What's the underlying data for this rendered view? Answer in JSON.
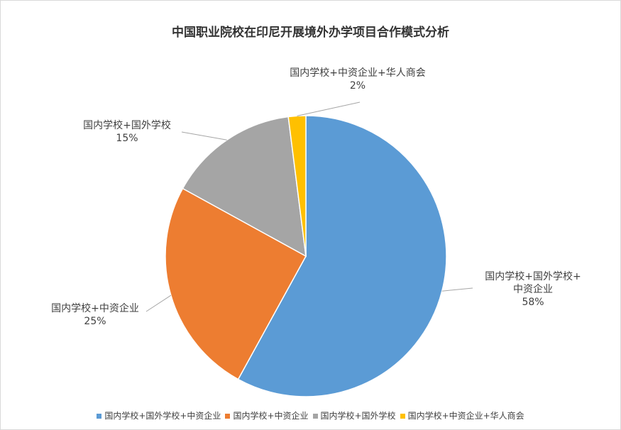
{
  "chart_data": {
    "type": "pie",
    "title": "中国职业院校在印尼开展境外办学项目合作模式分析",
    "categories": [
      "国内学校+国外学校+中资企业",
      "国内学校+中资企业",
      "国内学校+国外学校",
      "国内学校+中资企业+华人商会"
    ],
    "values": [
      58,
      25,
      15,
      2
    ],
    "percent_labels": [
      "58%",
      "25%",
      "15%",
      "2%"
    ],
    "slice_labels": [
      [
        "国内学校+国外学校+",
        "中资企业"
      ],
      [
        "国内学校+中资企业"
      ],
      [
        "国内学校+国外学校"
      ],
      [
        "国内学校+中资企业+华人商会"
      ]
    ],
    "colors": [
      "#5b9bd5",
      "#ed7d31",
      "#a5a5a5",
      "#ffc000"
    ],
    "legend_position": "bottom"
  }
}
